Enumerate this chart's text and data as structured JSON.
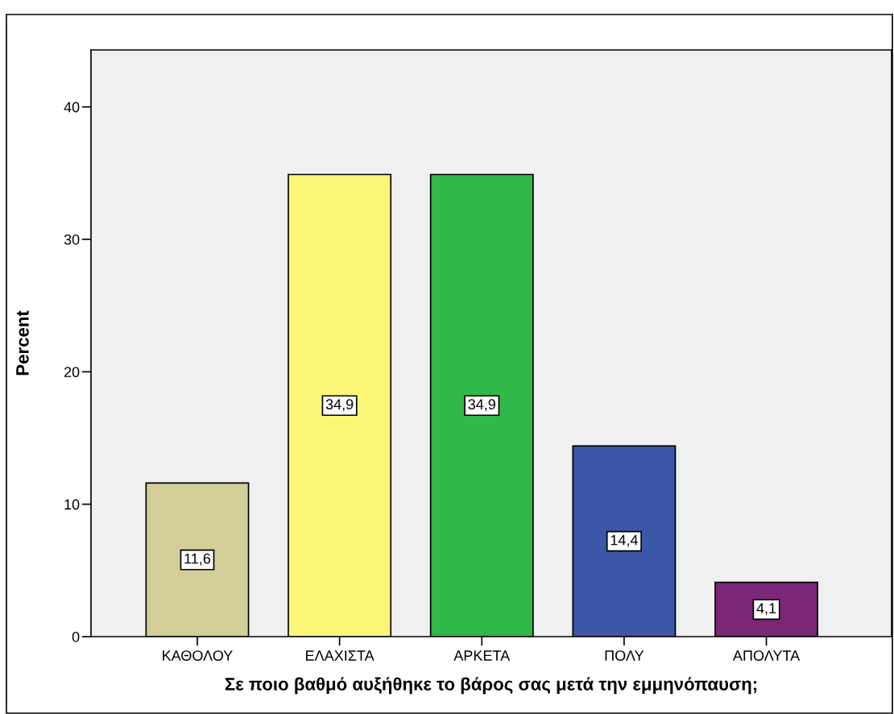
{
  "chart_data": {
    "type": "bar",
    "xlabel": "Σε ποιο βαθμό αυξήθηκε το βάρος σας μετά την εμμηνόπαυση;",
    "ylabel": "Percent",
    "categories": [
      "ΚΑΘΟΛΟΥ",
      "ΕΛΑΧΙΣΤΑ",
      "ΑΡΚΕΤΑ",
      "ΠΟΛΥ",
      "ΑΠΟΛΥΤΑ"
    ],
    "values": [
      11.6,
      34.9,
      34.9,
      14.4,
      4.1
    ],
    "value_labels": [
      "11,6",
      "34,9",
      "34,9",
      "14,4",
      "4,1"
    ],
    "colors": [
      "#d3ce97",
      "#fbf776",
      "#30b848",
      "#3c56a8",
      "#7b2676"
    ],
    "ylim": [
      0,
      44.3
    ],
    "yticks": [
      0,
      10,
      20,
      30,
      40
    ],
    "grid": false,
    "legend": false
  }
}
